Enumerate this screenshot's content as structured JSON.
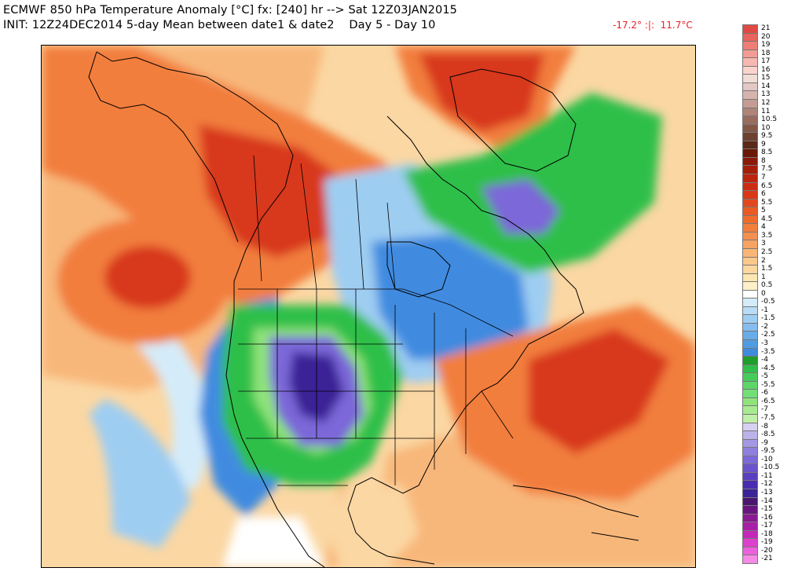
{
  "header": {
    "line1": "ECMWF 850 hPa Temperature Anomaly [°C] fx: [240] hr --> Sat 12Z03JAN2015",
    "line2": "INIT: 12Z24DEC2014 5-day Mean between date1 & date2    Day 5 - Day 10",
    "min_max": "-17.2° :|:  11.7°C"
  },
  "colors": {
    "minmax_text": "#e8202a",
    "deep_red": "#d8381c",
    "orange": "#f27e3c",
    "light_orange": "#f8b77a",
    "cream": "#fbd7a3",
    "white": "#ffffff",
    "light_blue": "#9ecdf2",
    "blue": "#3f8be0",
    "green": "#2fbf4a",
    "light_green": "#8fe37a",
    "purple": "#7c68d8",
    "dark_purple": "#3b2496"
  },
  "colorbar": {
    "labels": [
      "21",
      "20",
      "19",
      "18",
      "17",
      "16",
      "15",
      "14",
      "13",
      "12",
      "11",
      "10.5",
      "10",
      "9.5",
      "9",
      "8.5",
      "8",
      "7.5",
      "7",
      "6.5",
      "6",
      "5.5",
      "5",
      "4.5",
      "4",
      "3.5",
      "3",
      "2.5",
      "2",
      "1.5",
      "1",
      "0.5",
      "0",
      "-0.5",
      "-1",
      "-1.5",
      "-2",
      "-2.5",
      "-3",
      "-3.5",
      "-4",
      "-4.5",
      "-5",
      "-5.5",
      "-6",
      "-6.5",
      "-7",
      "-7.5",
      "-8",
      "-8.5",
      "-9",
      "-9.5",
      "-10",
      "-10.5",
      "-11",
      "-12",
      "-13",
      "-14",
      "-15",
      "-16",
      "-17",
      "-18",
      "-19",
      "-20",
      "-21"
    ],
    "colors": [
      "#e04a44",
      "#e8645c",
      "#ee7e76",
      "#f29c94",
      "#f6b8b0",
      "#fad4cc",
      "#f2dcd8",
      "#e4c8c4",
      "#d6b4ae",
      "#c49c94",
      "#b08478",
      "#9a6c60",
      "#845646",
      "#6e4030",
      "#5a2a1a",
      "#6a1808",
      "#8a1a08",
      "#a41e0a",
      "#bc240e",
      "#cc2c12",
      "#d83818",
      "#e2481e",
      "#ea5a24",
      "#f06c2c",
      "#f27e3c",
      "#f49050",
      "#f6a262",
      "#f8b676",
      "#fac88a",
      "#fcd89e",
      "#fce6b2",
      "#fdf0c8",
      "#ffffff",
      "#d4ecfa",
      "#b8dcf6",
      "#9ecdf2",
      "#84bdee",
      "#6aace8",
      "#509ce2",
      "#3f8be0",
      "#1f9e2c",
      "#2fbf4a",
      "#45cc5a",
      "#5cd66a",
      "#72de78",
      "#8fe37a",
      "#a8ea90",
      "#c0f0a8",
      "#d8d0f2",
      "#bcb2ea",
      "#a498e4",
      "#8e80de",
      "#7c68d8",
      "#6a52cc",
      "#5a3ec0",
      "#4a2cb0",
      "#3b2496",
      "#4a1670",
      "#6a1480",
      "#8a1a92",
      "#a820a6",
      "#c428b8",
      "#dc40cc",
      "#ec60dc",
      "#f48ae6"
    ]
  }
}
